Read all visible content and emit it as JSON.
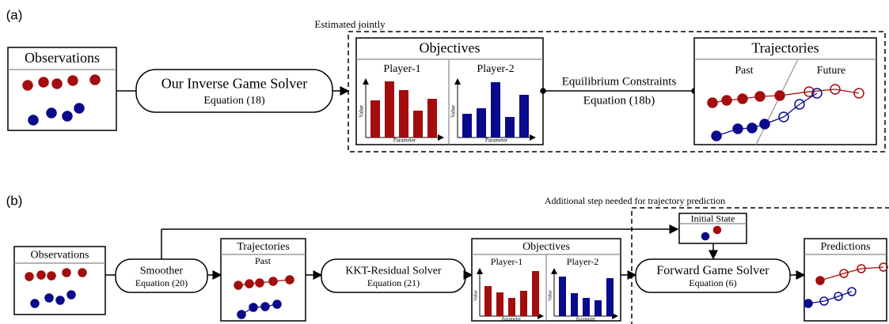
{
  "panel_a": {
    "label": "(a)",
    "observations": {
      "title": "Observations"
    },
    "solver": {
      "title": "Our Inverse Game Solver",
      "equation": "Equation (18)"
    },
    "group": {
      "label": "Estimated jointly"
    },
    "objectives": {
      "title": "Objectives",
      "players": [
        {
          "name": "Player-1",
          "y_label": "Value",
          "x_label": "Parameter"
        },
        {
          "name": "Player-2",
          "y_label": "Value",
          "x_label": "Parameter"
        }
      ]
    },
    "edge": {
      "label": "Equilibrium Constraints",
      "equation": "Equation (18b)"
    },
    "trajectories": {
      "title": "Trajectories",
      "past": "Past",
      "future": "Future"
    }
  },
  "panel_b": {
    "label": "(b)",
    "observations": {
      "title": "Observations"
    },
    "smoother": {
      "title": "Smoother",
      "equation": "Equation (20)"
    },
    "trajectories": {
      "title": "Trajectories",
      "past": "Past"
    },
    "kkt_solver": {
      "title": "KKT-Residual Solver",
      "equation": "Equation (21)"
    },
    "objectives": {
      "title": "Objectives",
      "players": [
        {
          "name": "Player-1",
          "y_label": "Value",
          "x_label": "Parameter"
        },
        {
          "name": "Player-2",
          "y_label": "Value",
          "x_label": "Parameter"
        }
      ]
    },
    "group": {
      "label": "Additional step needed for trajectory prediction"
    },
    "initial_state": {
      "title": "Initial State"
    },
    "forward_solver": {
      "title": "Forward Game Solver",
      "equation": "Equation (6)"
    },
    "predictions": {
      "title": "Predictions"
    }
  }
}
